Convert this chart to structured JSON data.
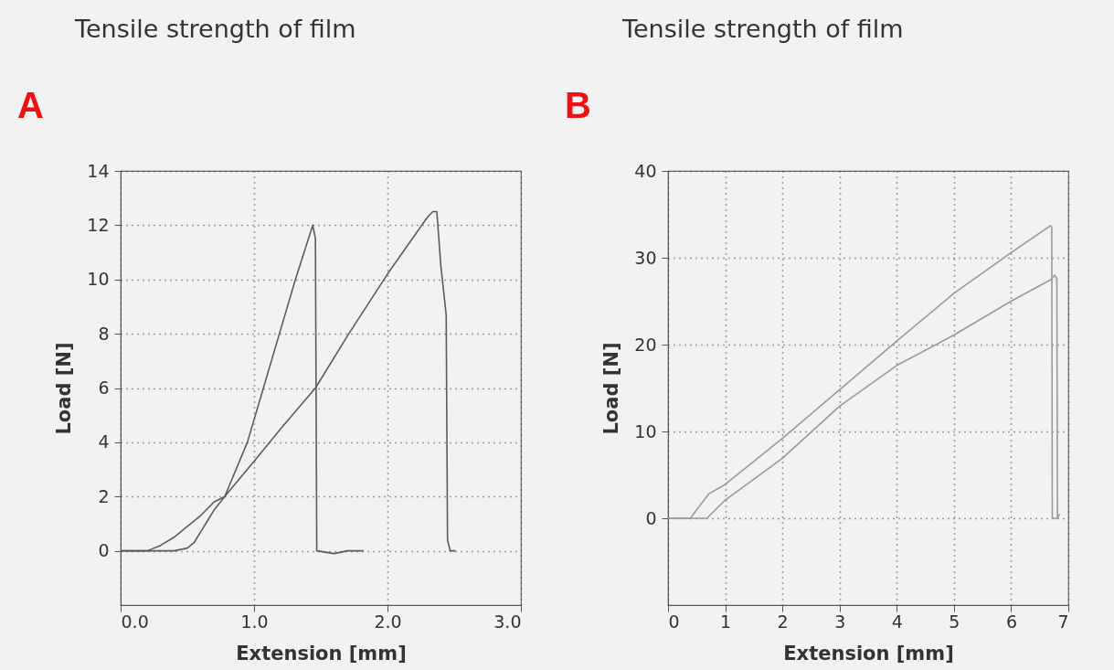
{
  "chart_data": [
    {
      "type": "line",
      "title": "Tensile strength of  film",
      "annotations": [
        "A"
      ],
      "xlabel": "Extension [mm]",
      "ylabel": "Load [N]",
      "xlim": [
        0,
        3
      ],
      "xticks": [
        {
          "value": 0,
          "label": "0.0"
        },
        {
          "value": 1,
          "label": "1.0"
        },
        {
          "value": 2,
          "label": "2.0"
        },
        {
          "value": 3,
          "label": "3.0"
        }
      ],
      "ylim": [
        -2,
        14
      ],
      "yticks": [
        0,
        2,
        4,
        6,
        8,
        10,
        12,
        14
      ],
      "grid": true,
      "line_style": "solid",
      "marker": "none",
      "series": [
        {
          "color": "#5c5c5c",
          "x": [
            0,
            0.2,
            0.4,
            0.5,
            0.55,
            0.6,
            0.65,
            0.7,
            0.78,
            0.95,
            1.07,
            1.19,
            1.31,
            1.44,
            1.46,
            1.47,
            1.6,
            1.7,
            1.82
          ],
          "values": [
            0,
            0,
            0,
            0.1,
            0.3,
            0.7,
            1.1,
            1.5,
            2,
            4,
            6,
            8,
            10,
            12,
            11.5,
            0,
            -0.1,
            0,
            0
          ]
        },
        {
          "color": "#5c5c5c",
          "x": [
            0,
            0.2,
            0.3,
            0.4,
            0.5,
            0.6,
            0.7,
            0.78,
            1.0,
            1.2,
            1.46,
            1.71,
            2.0,
            2.2,
            2.3,
            2.34,
            2.37,
            2.4,
            2.44,
            2.45,
            2.47,
            2.51
          ],
          "values": [
            0,
            0,
            0.2,
            0.5,
            0.9,
            1.3,
            1.8,
            2,
            3.3,
            4.5,
            6,
            8,
            10.2,
            11.6,
            12.3,
            12.5,
            12.5,
            10.5,
            8.7,
            0.4,
            0,
            0
          ]
        }
      ]
    },
    {
      "type": "line",
      "title": "Tensile strength of  film",
      "annotations": [
        "B"
      ],
      "xlabel": "Extension [mm]",
      "ylabel": "Load [N]",
      "xlim": [
        0,
        7
      ],
      "xticks": [
        0,
        1,
        2,
        3,
        4,
        5,
        6,
        7
      ],
      "ylim": [
        -10,
        40
      ],
      "yticks": [
        0,
        10,
        20,
        30,
        40
      ],
      "grid": true,
      "line_style": "solid",
      "marker": "none",
      "series": [
        {
          "color": "#9a9a9a",
          "x": [
            0,
            0.39,
            0.71,
            1.0,
            2.0,
            3.0,
            4.0,
            5.0,
            6.0,
            6.69,
            6.71,
            6.72,
            6.83
          ],
          "values": [
            0,
            0,
            2.8,
            3.9,
            9.2,
            14.8,
            20.4,
            25.9,
            30.6,
            33.7,
            33.5,
            0,
            0
          ]
        },
        {
          "color": "#9a9a9a",
          "x": [
            0,
            0.68,
            1.0,
            2.0,
            3.0,
            4.0,
            5.0,
            6.0,
            6.7,
            6.76,
            6.8,
            6.81,
            6.85
          ],
          "values": [
            0,
            0,
            2.1,
            6.9,
            12.9,
            17.6,
            21.1,
            25,
            27.5,
            28,
            27.6,
            0,
            0.5
          ]
        }
      ]
    }
  ]
}
